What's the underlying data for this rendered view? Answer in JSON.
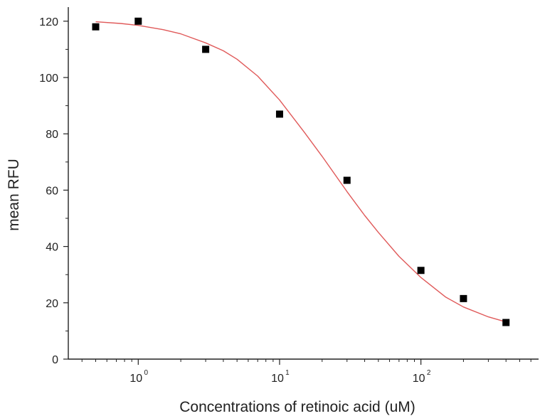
{
  "chart_data": {
    "type": "scatter",
    "xlabel": "Concentrations of retinoic acid (uM)",
    "ylabel": "mean RFU",
    "x_scale": "log10",
    "xlim": [
      0.32,
      680
    ],
    "ylim": [
      0,
      125
    ],
    "y_ticks": [
      "0",
      "20",
      "40",
      "60",
      "80",
      "100",
      "120"
    ],
    "x_ticks": [
      {
        "base": "10",
        "exp": "0"
      },
      {
        "base": "10",
        "exp": "1"
      },
      {
        "base": "10",
        "exp": "2"
      }
    ],
    "series": [
      {
        "kind": "points",
        "marker": "square",
        "color": "#000000",
        "x": [
          0.5,
          1,
          3,
          10,
          30,
          100,
          200,
          400
        ],
        "y": [
          118,
          120,
          110,
          87,
          63.5,
          31.5,
          21.5,
          13
        ]
      },
      {
        "kind": "fit-curve",
        "color": "#e05a5a",
        "x": [
          0.5,
          0.75,
          1,
          1.5,
          2,
          3,
          4,
          5,
          7,
          10,
          15,
          20,
          30,
          40,
          50,
          70,
          100,
          150,
          200,
          300,
          400
        ],
        "y": [
          119.8,
          119.2,
          118.5,
          117,
          115.5,
          112.3,
          109.5,
          106.5,
          100.5,
          92,
          80.5,
          72,
          59.5,
          51,
          45,
          36.5,
          29,
          22,
          18.5,
          15,
          13.2
        ]
      }
    ]
  }
}
